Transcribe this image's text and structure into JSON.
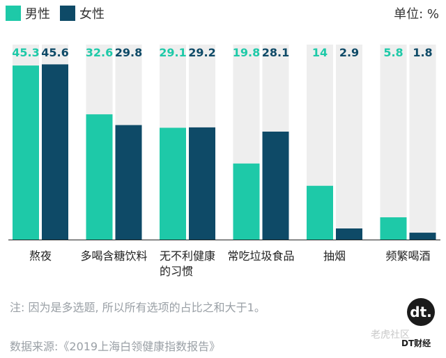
{
  "legend": [
    {
      "label": "男性",
      "color": "#1ec9a8"
    },
    {
      "label": "女性",
      "color": "#0e4a67"
    }
  ],
  "unit_label": "单位: %",
  "note": "注: 因为是多选题, 所以所有选项的占比之和大于1。",
  "source": "数据来源:《2019上海白领健康指数报告》",
  "logo": {
    "mark": "dt.",
    "text": "DT财经"
  },
  "corner_watermark": "老虎社区",
  "colors": {
    "male": "#1ec9a8",
    "female": "#0e4a67",
    "track": "#eeeeee",
    "male_label": "#1ec9a8",
    "female_label": "#0e4a67"
  },
  "chart_data": {
    "type": "bar",
    "categories": [
      {
        "lines": [
          "熬夜"
        ]
      },
      {
        "lines": [
          "多喝含糖饮料"
        ]
      },
      {
        "lines": [
          "无不利健康",
          "的习惯"
        ]
      },
      {
        "lines": [
          "常吃垃圾食品"
        ]
      },
      {
        "lines": [
          "抽烟"
        ]
      },
      {
        "lines": [
          "频繁喝酒"
        ]
      }
    ],
    "series": [
      {
        "name": "男性",
        "values": [
          45.3,
          32.6,
          29.1,
          19.8,
          14,
          5.8
        ]
      },
      {
        "name": "女性",
        "values": [
          45.6,
          29.8,
          29.2,
          28.1,
          2.9,
          1.8
        ]
      }
    ],
    "value_labels": [
      [
        "45.3",
        "32.6",
        "29.1",
        "19.8",
        "14",
        "5.8"
      ],
      [
        "45.6",
        "29.8",
        "29.2",
        "28.1",
        "2.9",
        "1.8"
      ]
    ],
    "ylim": [
      0,
      46.4
    ]
  }
}
